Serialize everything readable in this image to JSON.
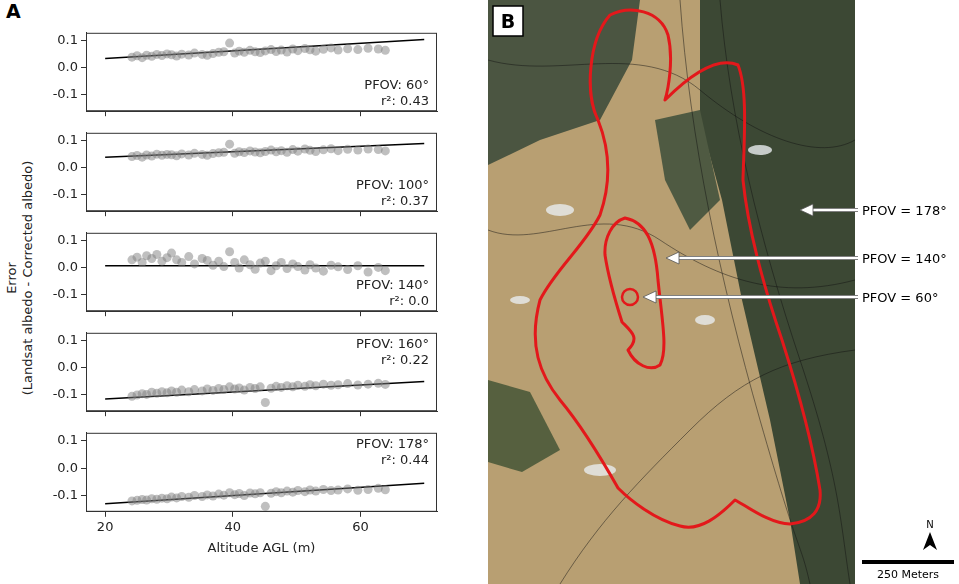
{
  "panel_letters": [
    "A",
    "B"
  ],
  "y_label": [
    "Error",
    "(Landsat albedo - Corrected albedo)"
  ],
  "chart_data": [
    {
      "type": "scatter",
      "annotations": [
        "PFOV: 60°",
        "r²: 0.43"
      ],
      "x": [
        24.2,
        25.0,
        25.8,
        26.5,
        27.3,
        28.1,
        28.9,
        29.7,
        30.4,
        31.2,
        32.0,
        33.1,
        34.0,
        35.2,
        36.0,
        36.9,
        37.8,
        38.6,
        39.5,
        40.3,
        41.0,
        41.8,
        42.7,
        43.5,
        44.3,
        45.1,
        46.0,
        46.8,
        47.6,
        48.5,
        49.4,
        50.2,
        51.3,
        52.1,
        53.0,
        54.2,
        55.4,
        56.5,
        58.0,
        59.6,
        61.2,
        62.8,
        63.9
      ],
      "values": [
        0.04,
        0.045,
        0.038,
        0.047,
        0.043,
        0.05,
        0.046,
        0.052,
        0.049,
        0.044,
        0.051,
        0.048,
        0.055,
        0.05,
        0.047,
        0.053,
        0.058,
        0.06,
        0.092,
        0.055,
        0.062,
        0.058,
        0.065,
        0.06,
        0.057,
        0.063,
        0.068,
        0.061,
        0.066,
        0.059,
        0.07,
        0.064,
        0.072,
        0.067,
        0.062,
        0.069,
        0.074,
        0.066,
        0.071,
        0.068,
        0.073,
        0.07,
        0.065
      ],
      "fit_x": [
        20,
        70
      ],
      "fit_values": [
        0.035,
        0.105
      ],
      "color": "#808080",
      "grid": false,
      "tick_labels": "y",
      "xlim": [
        17,
        72
      ],
      "xticks": [
        20,
        40,
        60
      ],
      "ylim": [
        -0.16,
        0.13
      ],
      "yticks": [
        -0.1,
        {
          "value": 0,
          "label": "0.0"
        },
        0.1
      ]
    },
    {
      "type": "scatter",
      "annotations": [
        "PFOV: 100°",
        "r²: 0.37"
      ],
      "x": [
        24.2,
        25.0,
        25.8,
        26.5,
        27.3,
        28.1,
        28.9,
        29.7,
        30.4,
        31.2,
        32.0,
        33.1,
        34.0,
        35.2,
        36.0,
        36.9,
        37.8,
        38.6,
        39.5,
        40.3,
        41.0,
        41.8,
        42.7,
        43.5,
        44.3,
        45.1,
        46.0,
        46.8,
        47.6,
        48.5,
        49.4,
        50.2,
        51.3,
        52.1,
        53.0,
        54.2,
        55.4,
        56.5,
        58.0,
        59.6,
        61.2,
        62.8,
        63.9
      ],
      "values": [
        0.042,
        0.046,
        0.04,
        0.048,
        0.044,
        0.051,
        0.047,
        0.05,
        0.049,
        0.045,
        0.052,
        0.048,
        0.054,
        0.05,
        0.047,
        0.053,
        0.056,
        0.058,
        0.088,
        0.054,
        0.06,
        0.057,
        0.063,
        0.059,
        0.056,
        0.061,
        0.066,
        0.06,
        0.064,
        0.058,
        0.068,
        0.062,
        0.07,
        0.065,
        0.061,
        0.067,
        0.071,
        0.064,
        0.069,
        0.066,
        0.07,
        0.068,
        0.063
      ],
      "fit_x": [
        20,
        70
      ],
      "fit_values": [
        0.04,
        0.09
      ],
      "color": "#808080",
      "grid": false,
      "tick_labels": "y",
      "xlim": [
        17,
        72
      ],
      "xticks": [
        20,
        40,
        60
      ],
      "ylim": [
        -0.16,
        0.13
      ],
      "yticks": [
        -0.1,
        {
          "value": 0,
          "label": "0.0"
        },
        0.1
      ]
    },
    {
      "type": "scatter",
      "annotations": [
        "PFOV: 140°",
        "r²: 0.0"
      ],
      "x": [
        24.2,
        25.0,
        25.8,
        26.5,
        27.3,
        28.1,
        28.9,
        29.7,
        30.4,
        31.2,
        32.0,
        33.1,
        34.0,
        35.2,
        36.0,
        36.9,
        37.8,
        38.6,
        39.5,
        40.3,
        41.0,
        41.8,
        42.7,
        43.5,
        44.3,
        45.1,
        46.0,
        46.8,
        47.6,
        48.5,
        49.4,
        50.2,
        51.3,
        52.1,
        53.0,
        54.2,
        55.4,
        56.5,
        58.0,
        59.6,
        61.2,
        62.8,
        63.9
      ],
      "values": [
        0.03,
        0.04,
        0.02,
        0.045,
        0.035,
        0.05,
        0.025,
        0.038,
        0.055,
        0.03,
        0.02,
        0.042,
        0.015,
        0.035,
        0.028,
        0.01,
        0.025,
        0.005,
        0.06,
        0.02,
        0.0,
        0.03,
        0.012,
        -0.005,
        0.018,
        0.025,
        -0.01,
        0.008,
        0.02,
        -0.002,
        0.015,
        0.005,
        -0.008,
        0.012,
        0.0,
        -0.012,
        0.01,
        0.004,
        -0.006,
        0.008,
        -0.015,
        0.002,
        -0.01
      ],
      "fit_x": [
        20,
        70
      ],
      "fit_values": [
        0.008,
        0.008
      ],
      "color": "#808080",
      "grid": false,
      "tick_labels": "y",
      "xlim": [
        17,
        72
      ],
      "xticks": [
        20,
        40,
        60
      ],
      "ylim": [
        -0.16,
        0.13
      ],
      "yticks": [
        -0.1,
        {
          "value": 0,
          "label": "0.0"
        },
        0.1
      ]
    },
    {
      "type": "scatter",
      "annotations": [
        "PFOV: 160°",
        "r²: 0.22"
      ],
      "x": [
        24.2,
        25.0,
        25.8,
        26.5,
        27.3,
        28.1,
        28.9,
        29.7,
        30.4,
        31.2,
        32.0,
        33.1,
        34.0,
        35.2,
        36.0,
        36.9,
        37.8,
        38.6,
        39.5,
        40.3,
        41.0,
        41.8,
        42.7,
        43.5,
        44.3,
        45.1,
        46.0,
        46.8,
        47.6,
        48.5,
        49.4,
        50.2,
        51.3,
        52.1,
        53.0,
        54.2,
        55.4,
        56.5,
        58.0,
        59.6,
        61.2,
        62.8,
        63.9
      ],
      "values": [
        -0.105,
        -0.1,
        -0.095,
        -0.098,
        -0.09,
        -0.094,
        -0.088,
        -0.092,
        -0.085,
        -0.09,
        -0.082,
        -0.088,
        -0.08,
        -0.085,
        -0.078,
        -0.083,
        -0.076,
        -0.08,
        -0.07,
        -0.078,
        -0.074,
        -0.082,
        -0.072,
        -0.076,
        -0.07,
        -0.128,
        -0.075,
        -0.068,
        -0.072,
        -0.066,
        -0.07,
        -0.064,
        -0.068,
        -0.062,
        -0.066,
        -0.06,
        -0.064,
        -0.062,
        -0.058,
        -0.063,
        -0.06,
        -0.057,
        -0.061
      ],
      "fit_x": [
        20,
        70
      ],
      "fit_values": [
        -0.115,
        -0.05
      ],
      "color": "#808080",
      "grid": false,
      "tick_labels": "y",
      "xlim": [
        17,
        72
      ],
      "xticks": [
        20,
        40,
        60
      ],
      "ylim": [
        -0.16,
        0.13
      ],
      "yticks": [
        -0.1,
        {
          "value": 0,
          "label": "0.0"
        },
        0.1
      ]
    },
    {
      "type": "scatter",
      "annotations": [
        "PFOV: 178°",
        "r²: 0.44"
      ],
      "x_label": "Altitude AGL (m)",
      "x": [
        24.2,
        25.0,
        25.8,
        26.5,
        27.3,
        28.1,
        28.9,
        29.7,
        30.4,
        31.2,
        32.0,
        33.1,
        34.0,
        35.2,
        36.0,
        36.9,
        37.8,
        38.6,
        39.5,
        40.3,
        41.0,
        41.8,
        42.7,
        43.5,
        44.3,
        45.1,
        46.0,
        46.8,
        47.6,
        48.5,
        49.4,
        50.2,
        51.3,
        52.1,
        53.0,
        54.2,
        55.4,
        56.5,
        58.0,
        59.6,
        61.2,
        62.8,
        63.9
      ],
      "values": [
        -0.12,
        -0.118,
        -0.115,
        -0.117,
        -0.112,
        -0.114,
        -0.11,
        -0.112,
        -0.106,
        -0.109,
        -0.104,
        -0.107,
        -0.1,
        -0.104,
        -0.098,
        -0.102,
        -0.095,
        -0.099,
        -0.09,
        -0.097,
        -0.093,
        -0.1,
        -0.091,
        -0.094,
        -0.09,
        -0.14,
        -0.092,
        -0.086,
        -0.09,
        -0.084,
        -0.088,
        -0.082,
        -0.086,
        -0.08,
        -0.084,
        -0.078,
        -0.082,
        -0.08,
        -0.076,
        -0.081,
        -0.078,
        -0.074,
        -0.079
      ],
      "fit_x": [
        20,
        70
      ],
      "fit_values": [
        -0.13,
        -0.055
      ],
      "color": "#808080",
      "grid": false,
      "tick_labels": true,
      "xlim": [
        17,
        72
      ],
      "xticks": [
        20,
        40,
        60
      ],
      "ylim": [
        -0.16,
        0.13
      ],
      "yticks": [
        -0.1,
        {
          "value": 0,
          "label": "0.0"
        },
        0.1
      ]
    }
  ],
  "map": {
    "contour_labels": [
      "PFOV = 178°",
      "PFOV = 140°",
      "PFOV = 60°"
    ],
    "north": "N",
    "scale_bar": "250 Meters"
  }
}
